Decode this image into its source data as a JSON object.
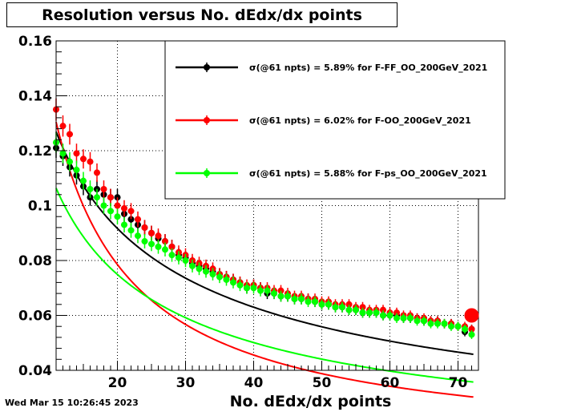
{
  "chart_data": {
    "type": "scatter",
    "title": "Resolution versus No. dEdx/dx points",
    "xlabel": "No. dEdx/dx points",
    "ylabel": "",
    "xlim": [
      11,
      73
    ],
    "ylim": [
      0.04,
      0.16
    ],
    "x_ticks": [
      20,
      30,
      40,
      50,
      60,
      70
    ],
    "x_tick_labels": [
      "20",
      "30",
      "40",
      "50",
      "60",
      "70"
    ],
    "y_ticks": [
      0.04,
      0.06,
      0.08,
      0.1,
      0.12,
      0.14,
      0.16
    ],
    "y_tick_labels": [
      "0.04",
      "0.06",
      "0.08",
      "0.1",
      "0.12",
      "0.14",
      "0.16"
    ],
    "grid": true,
    "legend_position": "top-right",
    "highlight_point": {
      "x": 72,
      "y": 0.06,
      "color": "#ff0000"
    },
    "series": [
      {
        "name": "σ(@61 npts) =  5.89% for F-FF_OO_200GeV_2021",
        "color": "#000000",
        "fit": {
          "a": 0.47,
          "b": 0.0012,
          "p": 0.55
        },
        "x": [
          11,
          12,
          13,
          14,
          15,
          16,
          17,
          18,
          19,
          20,
          21,
          22,
          23,
          24,
          25,
          26,
          27,
          28,
          29,
          30,
          31,
          32,
          33,
          34,
          35,
          36,
          37,
          38,
          39,
          40,
          41,
          42,
          43,
          44,
          45,
          46,
          47,
          48,
          49,
          50,
          51,
          52,
          53,
          54,
          55,
          56,
          57,
          58,
          59,
          60,
          61,
          62,
          63,
          64,
          65,
          66,
          67,
          68,
          69,
          70,
          71,
          72
        ],
        "y": [
          0.121,
          0.118,
          0.114,
          0.111,
          0.107,
          0.103,
          0.106,
          0.104,
          0.103,
          0.103,
          0.097,
          0.095,
          0.093,
          0.092,
          0.09,
          0.088,
          0.087,
          0.085,
          0.082,
          0.081,
          0.079,
          0.078,
          0.077,
          0.076,
          0.075,
          0.074,
          0.073,
          0.072,
          0.07,
          0.071,
          0.07,
          0.068,
          0.068,
          0.067,
          0.067,
          0.066,
          0.066,
          0.066,
          0.065,
          0.064,
          0.064,
          0.063,
          0.063,
          0.062,
          0.062,
          0.061,
          0.061,
          0.061,
          0.06,
          0.06,
          0.06,
          0.059,
          0.059,
          0.059,
          0.058,
          0.058,
          0.058,
          0.057,
          0.057,
          0.056,
          0.054,
          0.055
        ]
      },
      {
        "name": "σ(@61 npts) =  6.02% for F-OO_200GeV_2021",
        "color": "#ff0000",
        "fit": {
          "a": 1.15,
          "b": 0.0097,
          "p": 0.94
        },
        "x": [
          11,
          12,
          13,
          14,
          15,
          16,
          17,
          18,
          19,
          20,
          21,
          22,
          23,
          24,
          25,
          26,
          27,
          28,
          29,
          30,
          31,
          32,
          33,
          34,
          35,
          36,
          37,
          38,
          39,
          40,
          41,
          42,
          43,
          44,
          45,
          46,
          47,
          48,
          49,
          50,
          51,
          52,
          53,
          54,
          55,
          56,
          57,
          58,
          59,
          60,
          61,
          62,
          63,
          64,
          65,
          66,
          67,
          68,
          69,
          70,
          71,
          72
        ],
        "y": [
          0.135,
          0.129,
          0.126,
          0.119,
          0.117,
          0.116,
          0.112,
          0.106,
          0.103,
          0.1,
          0.099,
          0.098,
          0.095,
          0.092,
          0.09,
          0.089,
          0.087,
          0.085,
          0.083,
          0.082,
          0.08,
          0.079,
          0.078,
          0.077,
          0.075,
          0.074,
          0.073,
          0.072,
          0.071,
          0.071,
          0.07,
          0.07,
          0.069,
          0.069,
          0.068,
          0.067,
          0.067,
          0.066,
          0.066,
          0.065,
          0.065,
          0.064,
          0.064,
          0.064,
          0.063,
          0.063,
          0.062,
          0.062,
          0.062,
          0.061,
          0.061,
          0.06,
          0.06,
          0.059,
          0.059,
          0.058,
          0.058,
          0.057,
          0.057,
          0.056,
          0.056,
          0.055
        ]
      },
      {
        "name": "σ(@61 npts) =  5.88% for F-ps_OO_200GeV_2021",
        "color": "#00ff00",
        "fit": {
          "a": 0.44,
          "b": 0.002,
          "p": 0.6
        },
        "x": [
          11,
          12,
          13,
          14,
          15,
          16,
          17,
          18,
          19,
          20,
          21,
          22,
          23,
          24,
          25,
          26,
          27,
          28,
          29,
          30,
          31,
          32,
          33,
          34,
          35,
          36,
          37,
          38,
          39,
          40,
          41,
          42,
          43,
          44,
          45,
          46,
          47,
          48,
          49,
          50,
          51,
          52,
          53,
          54,
          55,
          56,
          57,
          58,
          59,
          60,
          61,
          62,
          63,
          64,
          65,
          66,
          67,
          68,
          69,
          70,
          71,
          72
        ],
        "y": [
          0.123,
          0.119,
          0.116,
          0.113,
          0.109,
          0.106,
          0.103,
          0.1,
          0.098,
          0.096,
          0.093,
          0.091,
          0.089,
          0.087,
          0.086,
          0.085,
          0.084,
          0.082,
          0.081,
          0.08,
          0.078,
          0.077,
          0.076,
          0.075,
          0.074,
          0.073,
          0.072,
          0.071,
          0.07,
          0.07,
          0.069,
          0.069,
          0.068,
          0.067,
          0.067,
          0.066,
          0.066,
          0.065,
          0.065,
          0.064,
          0.064,
          0.063,
          0.063,
          0.062,
          0.062,
          0.061,
          0.061,
          0.061,
          0.06,
          0.06,
          0.059,
          0.059,
          0.059,
          0.058,
          0.058,
          0.057,
          0.057,
          0.057,
          0.056,
          0.056,
          0.055,
          0.053
        ]
      }
    ]
  },
  "footer": {
    "timestamp": "Wed Mar 15 10:26:45 2023"
  }
}
